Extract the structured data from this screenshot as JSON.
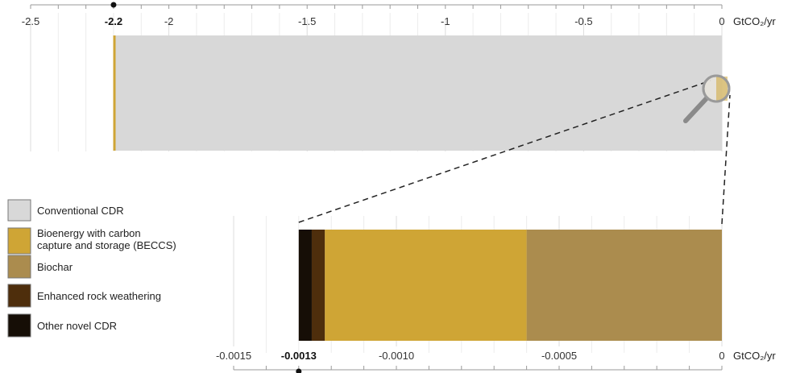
{
  "chart_data": [
    {
      "type": "bar",
      "orientation": "horizontal",
      "stacked": true,
      "title": "",
      "unit_label": "GtCO₂/yr",
      "xlim": [
        -2.5,
        0
      ],
      "ticks": [
        {
          "value": -2.5,
          "label": "-2.5"
        },
        {
          "value": -2,
          "label": "-2"
        },
        {
          "value": -1.5,
          "label": "-1.5"
        },
        {
          "value": -1,
          "label": "-1"
        },
        {
          "value": -0.5,
          "label": "-0.5"
        },
        {
          "value": 0,
          "label": "0"
        }
      ],
      "highlight_tick": {
        "value": -2.2,
        "label": "-2.2"
      },
      "grid": true,
      "series": [
        {
          "name": "Conventional CDR",
          "value": -2.2,
          "color": "#d8d8d8"
        },
        {
          "name": "Novel CDR",
          "value": -0.0013,
          "color": "#cfa535"
        }
      ],
      "annotation": "magnifier-icon"
    },
    {
      "type": "bar",
      "orientation": "horizontal",
      "stacked": true,
      "title": "",
      "unit_label": "GtCO₂/yr",
      "xlim": [
        -0.0015,
        0
      ],
      "ticks": [
        {
          "value": -0.0015,
          "label": "-0.0015"
        },
        {
          "value": -0.001,
          "label": "-0.0010"
        },
        {
          "value": -0.0005,
          "label": "-0.0005"
        },
        {
          "value": 0,
          "label": "0"
        }
      ],
      "highlight_tick": {
        "value": -0.0013,
        "label": "-0.0013"
      },
      "grid": true,
      "segments": [
        {
          "name": "Biochar",
          "value": -0.0006,
          "color": "#ab8c4e"
        },
        {
          "name": "Bioenergy with carbon capture and storage (BECCS)",
          "value": -0.00062,
          "color": "#cfa535"
        },
        {
          "name": "Enhanced rock weathering",
          "value": -4e-05,
          "color": "#4e2e0c"
        },
        {
          "name": "Other novel CDR",
          "value": -4e-05,
          "color": "#160e06"
        }
      ]
    }
  ],
  "legend": {
    "placement": "left",
    "items": [
      {
        "lines": [
          "Conventional CDR"
        ],
        "color": "#d8d8d8"
      },
      {
        "lines": [
          "Bioenergy with carbon",
          "capture and storage (BECCS)"
        ],
        "color": "#cfa535"
      },
      {
        "lines": [
          "Biochar"
        ],
        "color": "#ab8c4e"
      },
      {
        "lines": [
          "Enhanced rock weathering"
        ],
        "color": "#4e2e0c"
      },
      {
        "lines": [
          "Other novel CDR"
        ],
        "color": "#160e06"
      }
    ]
  }
}
